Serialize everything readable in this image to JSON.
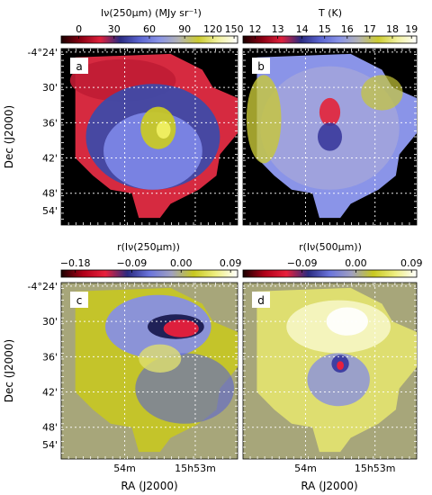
{
  "figure": {
    "panels": [
      {
        "label": "a",
        "colorbar": {
          "title": "Iν(250µm) (MJy sr⁻¹)",
          "ticks": [
            "0",
            "30",
            "60",
            "90",
            "120",
            "150"
          ],
          "stops": [
            "#1a0000",
            "#8a0012",
            "#e0203c",
            "#2a2a80",
            "#5a64d0",
            "#8a94e8",
            "#b4b4b4",
            "#cccc30",
            "#f2f2a0",
            "#ffffff"
          ]
        },
        "background": "#000000",
        "map_colors": [
          "#d62a40",
          "#c01c34",
          "#3f4aa8",
          "#7c86e6",
          "#c8c828",
          "#eeee60"
        ]
      },
      {
        "label": "b",
        "colorbar": {
          "title": "T (K)",
          "ticks": [
            "12",
            "13",
            "14",
            "15",
            "16",
            "17",
            "18",
            "19"
          ],
          "stops": [
            "#1a0000",
            "#8a0012",
            "#e0203c",
            "#2a2a80",
            "#5a64d0",
            "#8a94e8",
            "#b4b4b4",
            "#cccc30",
            "#f2f2a0",
            "#ffffff"
          ]
        },
        "background": "#000000",
        "map_colors": [
          "#8a94e8",
          "#a8a8d8",
          "#c8c838",
          "#e02a40",
          "#3a3a9c"
        ]
      },
      {
        "label": "c",
        "colorbar": {
          "title": "r(Iν(250µm))",
          "ticks": [
            "−0.18",
            "−0.09",
            "0.00",
            "0.09"
          ],
          "stops": [
            "#1a0000",
            "#b00018",
            "#e8203c",
            "#2a2a80",
            "#6a74dc",
            "#a0a0c0",
            "#c8c820",
            "#eeee80",
            "#ffffff"
          ]
        },
        "background": "#a7a67a",
        "map_colors": [
          "#c4c42a",
          "#8890e0",
          "#5a64d0",
          "#1a1a50",
          "#e8203c",
          "#dede70"
        ]
      },
      {
        "label": "d",
        "colorbar": {
          "title": "r(Iν(500µm))",
          "ticks": [
            "−0.09",
            "0.00",
            "0.09"
          ],
          "stops": [
            "#1a0000",
            "#b00018",
            "#e8203c",
            "#2a2a80",
            "#6a74dc",
            "#a0a0c0",
            "#c8c820",
            "#eeee80",
            "#ffffff"
          ]
        },
        "background": "#a7a67a",
        "map_colors": [
          "#dede70",
          "#f4f4c0",
          "#ffffff",
          "#8890e0",
          "#3a3aa0",
          "#e8203c"
        ]
      }
    ],
    "dec_ticks": [
      "-4°24'",
      "30'",
      "36'",
      "42'",
      "48'",
      "54'"
    ],
    "ra_ticks": [
      "54m",
      "15h53m"
    ],
    "ylabel": "Dec (J2000)",
    "xlabel": "RA (J2000)"
  }
}
